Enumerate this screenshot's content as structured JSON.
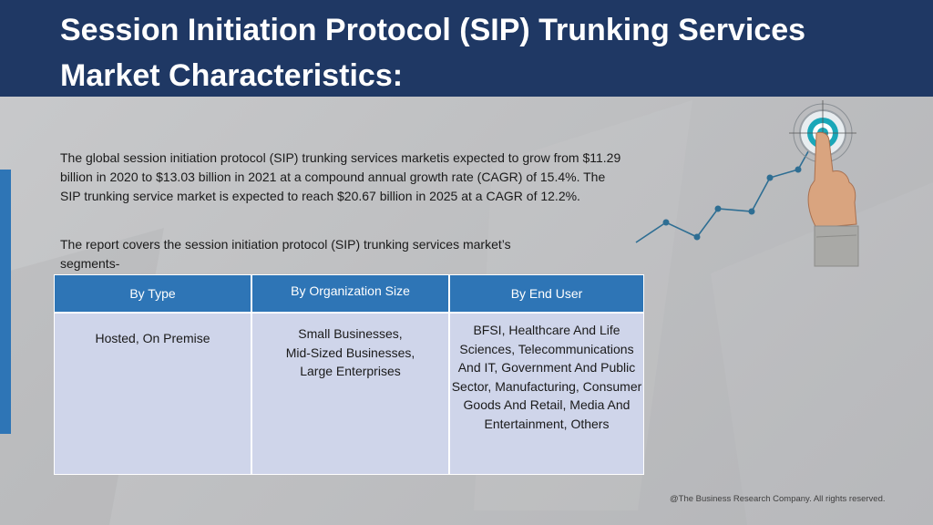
{
  "slide": {
    "title_line1": "Session Initiation Protocol (SIP) Trunking Services",
    "title_line2": "Market Characteristics:",
    "paragraph_1": "The global session initiation protocol (SIP) trunking services marketis expected to grow from $11.29 billion in 2020 to $13.03 billion in 2021 at a compound annual growth rate (CAGR) of 15.4%. The SIP trunking service market is expected to reach $20.67 billion in 2025 at a CAGR of 12.2%.",
    "paragraph_2": "The report covers the session initiation protocol (SIP) trunking services market’s segments-",
    "footer": "@The Business Research Company. All rights reserved."
  },
  "segments_table": {
    "headers": [
      "By Type",
      "By Organization Size",
      "By End User"
    ],
    "cells": [
      "Hosted, On Premise",
      "Small Businesses, Mid-Sized Businesses, Large Enterprises",
      "BFSI, Healthcare And Life Sciences, Telecommunications And IT, Government And Public Sector, Manufacturing, Consumer Goods And Retail, Media And Entertainment, Others"
    ]
  },
  "colors": {
    "header_bg": "#1f3864",
    "table_header_bg": "#2e75b6",
    "table_body_bg": "#cfd5ea",
    "accent_bar": "#2e75b6",
    "target_teal": "#1aa7b8"
  },
  "icons": {
    "graphic": "growth-chart-with-finger-pointing-target-icon"
  }
}
